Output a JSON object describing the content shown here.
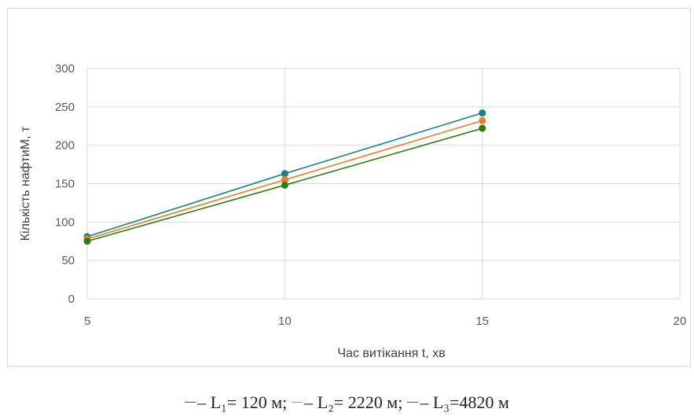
{
  "chart_data": {
    "type": "line",
    "xlabel": "Час витікання t, хв",
    "ylabel": "Кількість нафтиМ, т",
    "xlim": [
      5,
      20
    ],
    "ylim": [
      0,
      300
    ],
    "x_ticks": [
      "5",
      "10",
      "15",
      "20"
    ],
    "y_ticks": [
      "0",
      "50",
      "100",
      "150",
      "200",
      "250",
      "300"
    ],
    "grid": true,
    "legend_position": "bottom",
    "series": [
      {
        "name": "L1= 120 м;",
        "legend_label": "– L₁= 120 м;",
        "color": "#1a7f87",
        "swatch_color": "#3f48cc",
        "x": [
          5,
          10,
          15
        ],
        "y": [
          81,
          163,
          242
        ]
      },
      {
        "name": "L2= 2220 м;",
        "legend_label": "– L₂= 2220 м;",
        "color": "#f07d26",
        "swatch_color": "#f07d26",
        "x": [
          5,
          10,
          15
        ],
        "y": [
          78,
          155,
          232
        ]
      },
      {
        "name": "L3=4820 м",
        "legend_label": "–  L₃=4820 м",
        "color": "#2e7d12",
        "swatch_color": "#2e7d12",
        "x": [
          5,
          10,
          15
        ],
        "y": [
          75,
          148,
          222
        ]
      }
    ]
  }
}
